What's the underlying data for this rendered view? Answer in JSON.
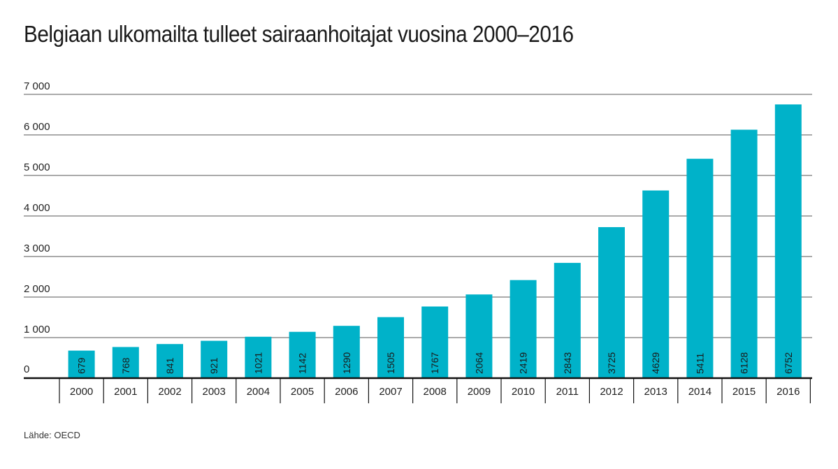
{
  "chart_data": {
    "type": "bar",
    "title": "Belgiaan ulkomailta tulleet sairaanhoitajat vuosina 2000–2016",
    "xlabel": "",
    "ylabel": "",
    "categories": [
      "2000",
      "2001",
      "2002",
      "2003",
      "2004",
      "2005",
      "2006",
      "2007",
      "2008",
      "2009",
      "2010",
      "2011",
      "2012",
      "2013",
      "2014",
      "2015",
      "2016"
    ],
    "values": [
      679,
      768,
      841,
      921,
      1021,
      1142,
      1290,
      1505,
      1767,
      2064,
      2419,
      2843,
      3725,
      4629,
      5411,
      6128,
      6752
    ],
    "value_labels": [
      "679",
      "768",
      "841",
      "921",
      "1021",
      "1142",
      "1290",
      "1505",
      "1767",
      "2064",
      "2419",
      "2843",
      "3725",
      "4629",
      "5411",
      "6128",
      "6752"
    ],
    "ylim": [
      0,
      7000
    ],
    "yticks": [
      0,
      1000,
      2000,
      3000,
      4000,
      5000,
      6000,
      7000
    ],
    "ytick_labels": [
      "0",
      "1 000",
      "2 000",
      "3 000",
      "4 000",
      "5 000",
      "6 000",
      "7 000"
    ],
    "grid": true,
    "bar_color": "#00b2c9",
    "grid_color": "#555555"
  },
  "source": "Lähde: OECD"
}
